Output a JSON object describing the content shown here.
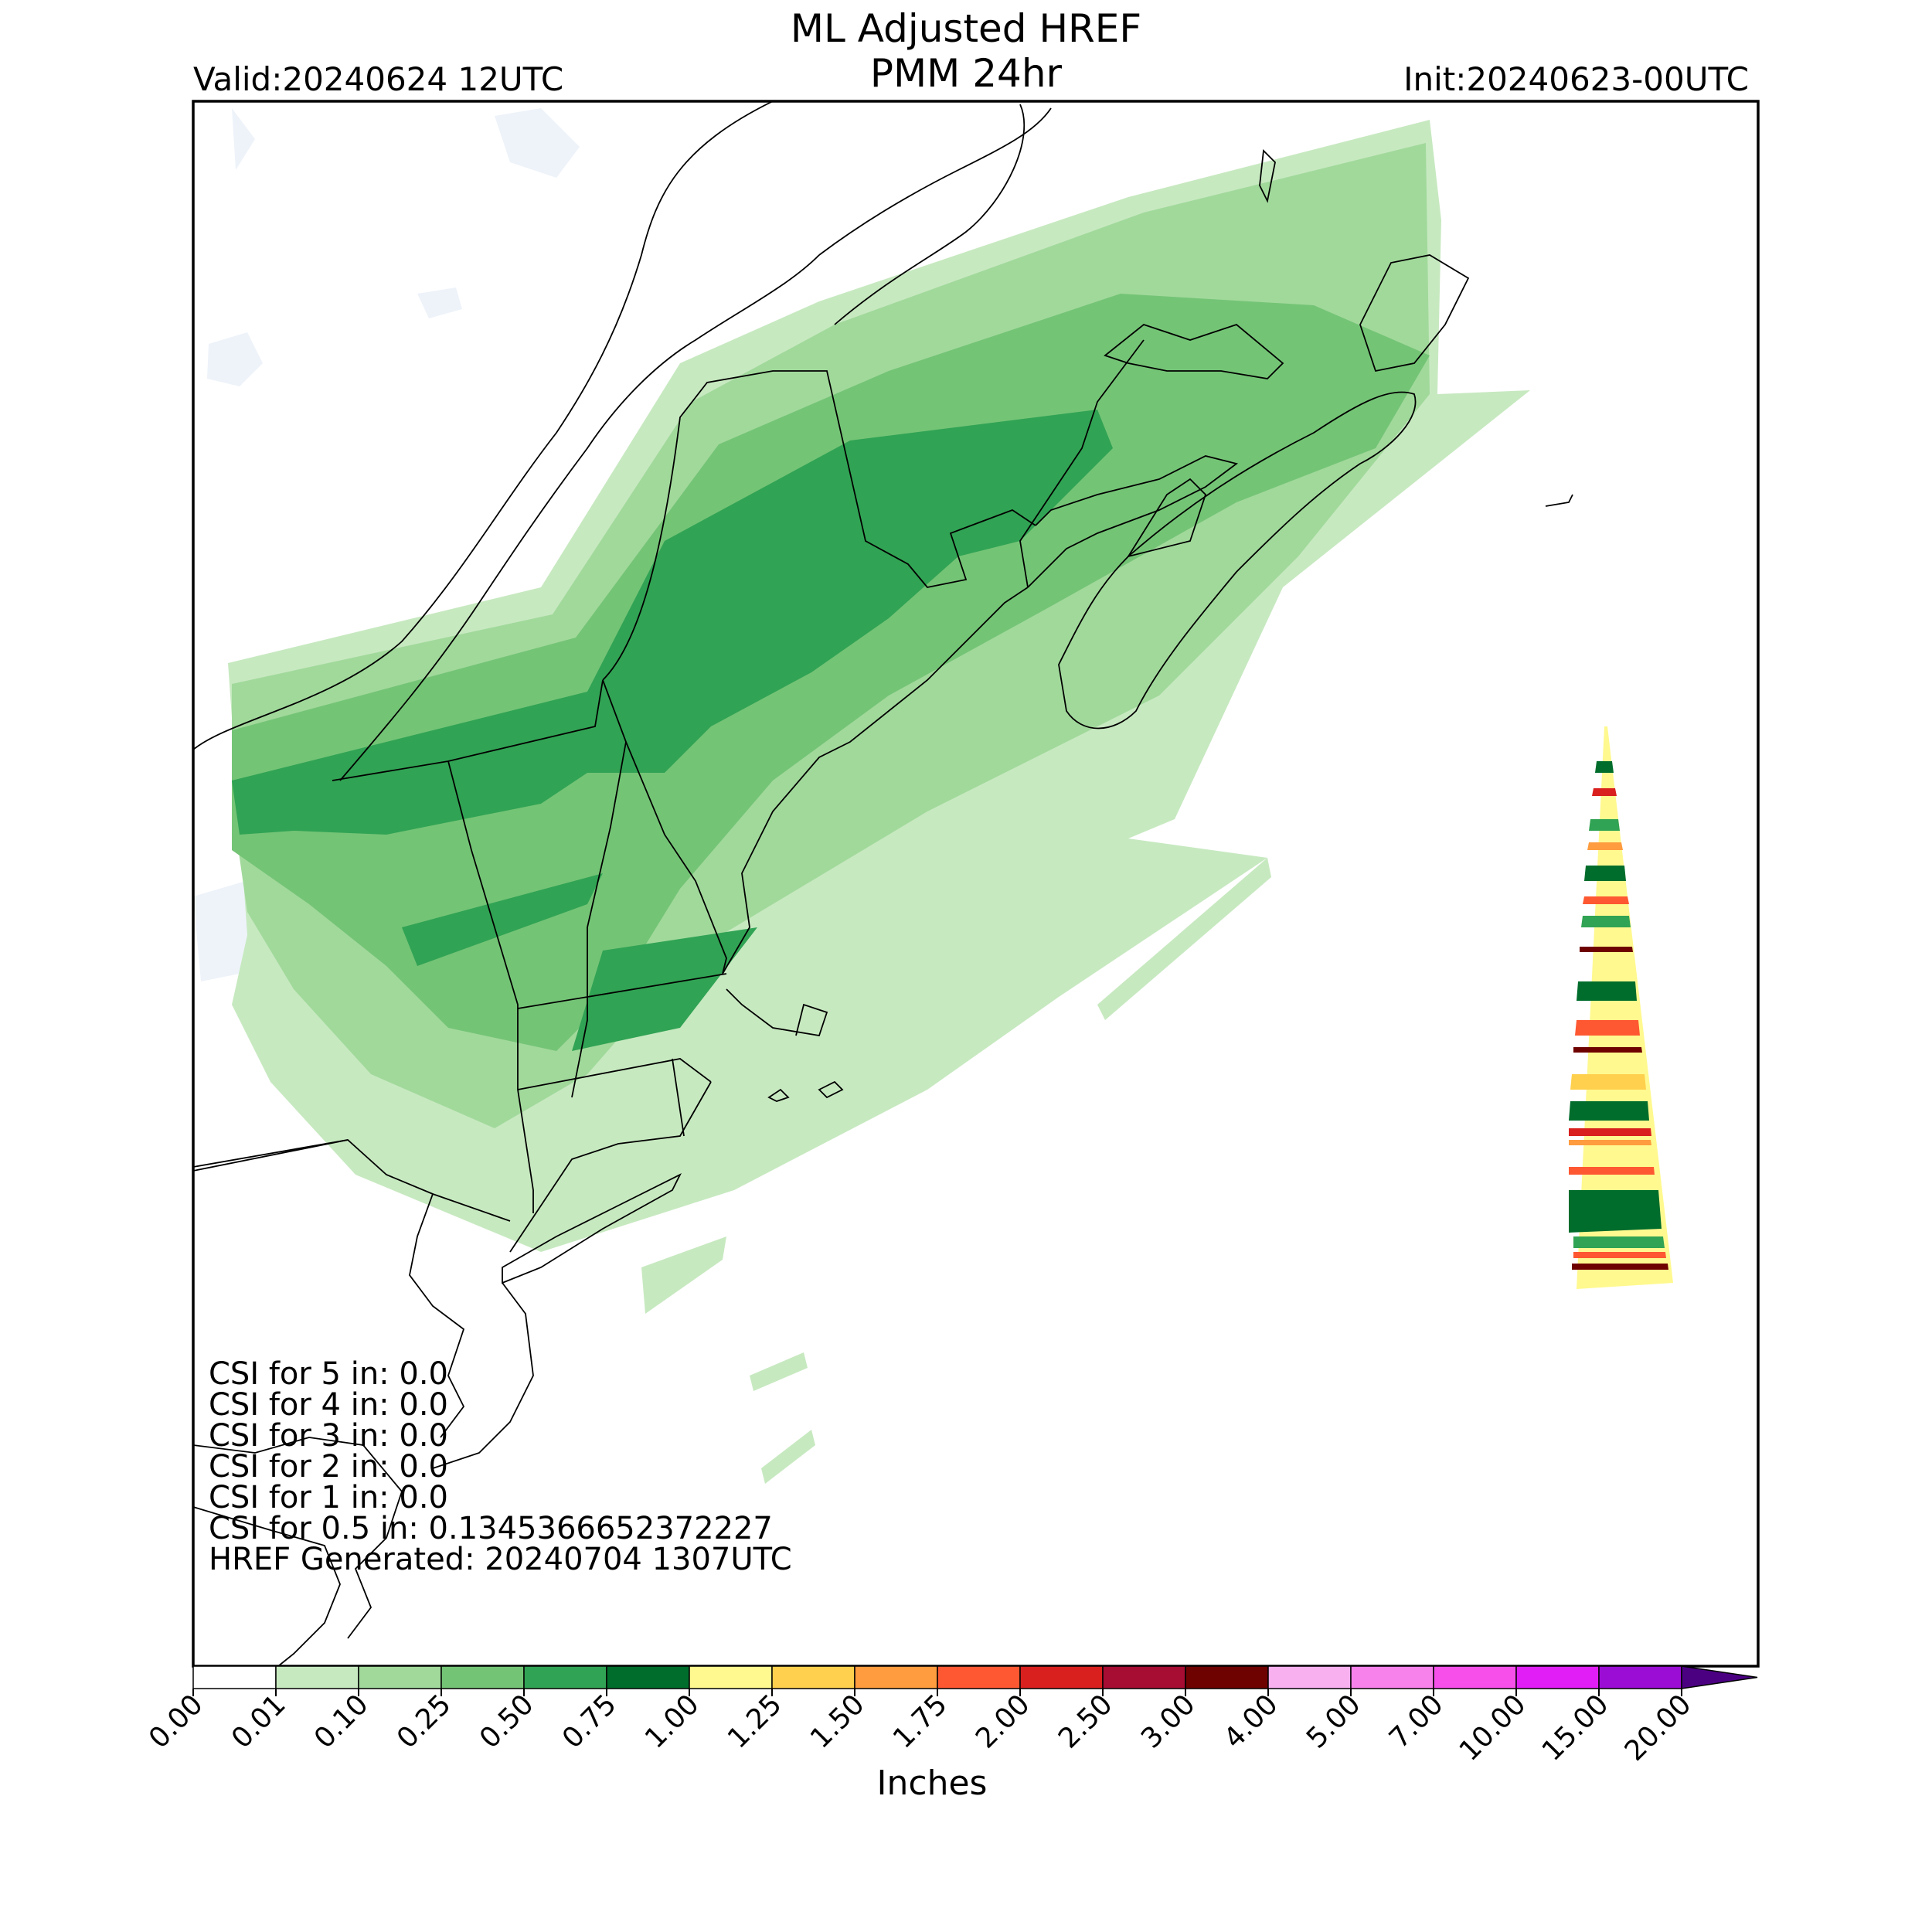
{
  "header": {
    "title_line1": "ML Adjusted HREF",
    "title_line2": "PMM 24hr",
    "valid": "Valid:20240624 12UTC",
    "init": "Init:20240623-00UTC"
  },
  "stats": [
    "CSI for 5 in: 0.0",
    "CSI for 4 in: 0.0",
    "CSI for 3 in: 0.0",
    "CSI for 2 in: 0.0",
    "CSI for 1 in: 0.0",
    "CSI for 0.5 in: 0.1345366652372227",
    "HREF Generated: 20240704 1307UTC"
  ],
  "colorbar": {
    "label": "Inches",
    "ticks": [
      "0.00",
      "0.01",
      "0.10",
      "0.25",
      "0.50",
      "0.75",
      "1.00",
      "1.25",
      "1.50",
      "1.75",
      "2.00",
      "2.50",
      "3.00",
      "4.00",
      "5.00",
      "7.00",
      "10.00",
      "15.00",
      "20.00"
    ],
    "colors": [
      "#ffffff",
      "#c7e9c0",
      "#a1d99b",
      "#74c476",
      "#31a354",
      "#006d2c",
      "#fff98f",
      "#ffd04d",
      "#fe9c3f",
      "#fe5832",
      "#d9201e",
      "#a70c33",
      "#6e0200",
      "#f9b0ef",
      "#f882ec",
      "#f750ea",
      "#e11ef6",
      "#9b0dd5"
    ],
    "extend_color": "#4b0082"
  },
  "map": {
    "region": "Northeastern United States and Maritime Canada",
    "projection": "Lambert conformal",
    "basemap_colors": {
      "land": "#ffffff",
      "lakes": "#eef3fa",
      "borders": "#000000"
    }
  }
}
